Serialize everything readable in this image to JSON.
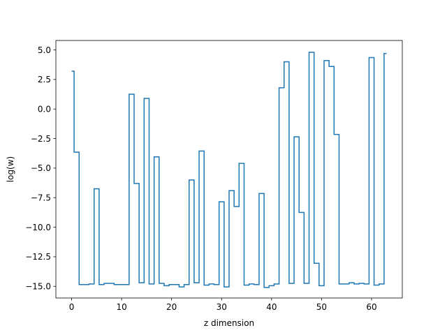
{
  "chart_data": {
    "type": "line",
    "drawstyle": "steps-mid",
    "title": "",
    "xlabel": "z dimension",
    "ylabel": "log(w)",
    "xlim": [
      -3.15,
      66.15
    ],
    "ylim": [
      -15.99,
      5.8
    ],
    "xticks": [
      0,
      10,
      20,
      30,
      40,
      50,
      60
    ],
    "xtick_labels": [
      "0",
      "10",
      "20",
      "30",
      "40",
      "50",
      "60"
    ],
    "yticks": [
      5.0,
      2.5,
      0.0,
      -2.5,
      -5.0,
      -7.5,
      -10.0,
      -12.5,
      -15.0
    ],
    "ytick_labels": [
      "5.0",
      "2.5",
      "0.0",
      "−2.5",
      "−5.0",
      "−7.5",
      "−10.0",
      "−12.5",
      "−15.0"
    ],
    "grid": false,
    "series": [
      {
        "color": "#1f77b4",
        "x": [
          0,
          1,
          2,
          3,
          4,
          5,
          6,
          7,
          8,
          9,
          10,
          11,
          12,
          13,
          14,
          15,
          16,
          17,
          18,
          19,
          20,
          21,
          22,
          23,
          24,
          25,
          26,
          27,
          28,
          29,
          30,
          31,
          32,
          33,
          34,
          35,
          36,
          37,
          38,
          39,
          40,
          41,
          42,
          43,
          44,
          45,
          46,
          47,
          48,
          49,
          50,
          51,
          52,
          53,
          54,
          55,
          56,
          57,
          58,
          59,
          60,
          61,
          62,
          63
        ],
        "values": [
          3.2,
          -3.65,
          -14.85,
          -14.85,
          -14.8,
          -6.75,
          -14.85,
          -14.75,
          -14.75,
          -14.85,
          -14.85,
          -14.85,
          1.25,
          -6.3,
          -14.7,
          0.9,
          -14.8,
          -4.05,
          -14.75,
          -14.95,
          -14.85,
          -14.85,
          -15.05,
          -14.85,
          -6.0,
          -14.7,
          -3.55,
          -14.9,
          -14.8,
          -14.85,
          -7.85,
          -15.05,
          -6.9,
          -8.25,
          -4.6,
          -14.9,
          -14.8,
          -14.85,
          -7.15,
          -15.1,
          -14.95,
          -14.8,
          1.8,
          4.0,
          -14.75,
          -2.35,
          -8.75,
          -14.75,
          4.8,
          -13.05,
          -14.95,
          4.1,
          3.6,
          -2.15,
          -14.8,
          -14.8,
          -14.7,
          -14.8,
          -14.75,
          -14.8,
          4.35,
          -14.9,
          -14.8,
          4.7
        ]
      }
    ]
  }
}
